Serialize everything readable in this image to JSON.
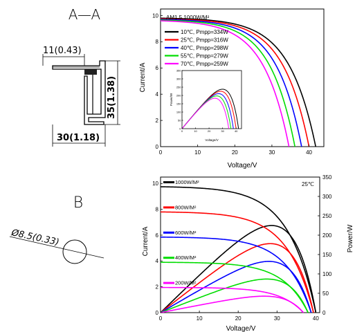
{
  "drawing_a": {
    "title": "A—A",
    "dim_top": "11(0.43)",
    "dim_side": "35(1.38)",
    "dim_bottom": "30(1.18)"
  },
  "drawing_b": {
    "title": "B",
    "dim_hole": "Ø8.5(0.33)"
  },
  "chart_data": [
    {
      "type": "line",
      "title": "",
      "annotation": "AM1.5,1000W/M²",
      "xlabel": "Voltage/V",
      "ylabel": "Current/A",
      "xlim": [
        0,
        44
      ],
      "ylim": [
        0,
        10.5
      ],
      "xticks": [
        0,
        10,
        20,
        30,
        40
      ],
      "yticks": [
        0,
        2,
        4,
        6,
        8,
        10
      ],
      "grid": false,
      "legend": "top-left",
      "series": [
        {
          "name": "10℃, Pmpp=334W",
          "color": "#000000",
          "isc": 9.8,
          "voc": 41.8,
          "vmp": 34.6
        },
        {
          "name": "25℃, Pmpp=316W",
          "color": "#ff0000",
          "isc": 9.75,
          "voc": 40.0,
          "vmp": 33.0
        },
        {
          "name": "40℃, Pmpp=298W",
          "color": "#0000ff",
          "isc": 9.7,
          "voc": 38.0,
          "vmp": 31.2
        },
        {
          "name": "55℃, Pmpp=279W",
          "color": "#00dd00",
          "isc": 9.65,
          "voc": 36.2,
          "vmp": 29.5
        },
        {
          "name": "70℃, Pmpp=259W",
          "color": "#ff00ff",
          "isc": 9.6,
          "voc": 34.6,
          "vmp": 27.8
        }
      ],
      "inset": {
        "type": "line",
        "xlabel": "Voltage/V",
        "ylabel": "Power/W",
        "xlim": [
          0,
          44
        ],
        "ylim": [
          0,
          350
        ],
        "xticks": [
          0,
          10,
          20,
          30,
          40
        ],
        "yticks": [
          0,
          50,
          100,
          150,
          200,
          250,
          300,
          350
        ]
      }
    },
    {
      "type": "line",
      "title": "",
      "annotation": "25℃",
      "xlabel": "Voltage/V",
      "ylabel": "Current/A",
      "y2label": "Power/W",
      "xlim": [
        0,
        41
      ],
      "ylim": [
        0,
        10.5
      ],
      "y2lim": [
        0,
        350
      ],
      "xticks": [
        0,
        10,
        20,
        30,
        40
      ],
      "yticks": [
        0,
        2,
        4,
        6,
        8,
        10
      ],
      "y2ticks": [
        0,
        50,
        100,
        150,
        200,
        250,
        300,
        350
      ],
      "grid": false,
      "legend": "inline-left",
      "series": [
        {
          "name": "1000W/M²",
          "color": "#000000",
          "isc": 9.75,
          "voc": 40.0,
          "vmp": 33.0
        },
        {
          "name": "800W/M²",
          "color": "#ff0000",
          "isc": 7.8,
          "voc": 39.4,
          "vmp": 32.6
        },
        {
          "name": "600W/M²",
          "color": "#0000ff",
          "isc": 5.85,
          "voc": 38.8,
          "vmp": 32.2
        },
        {
          "name": "400W/M²",
          "color": "#00dd00",
          "isc": 3.9,
          "voc": 38.0,
          "vmp": 31.6
        },
        {
          "name": "200W/M²",
          "color": "#ff00ff",
          "isc": 1.95,
          "voc": 36.8,
          "vmp": 30.8
        }
      ]
    }
  ]
}
